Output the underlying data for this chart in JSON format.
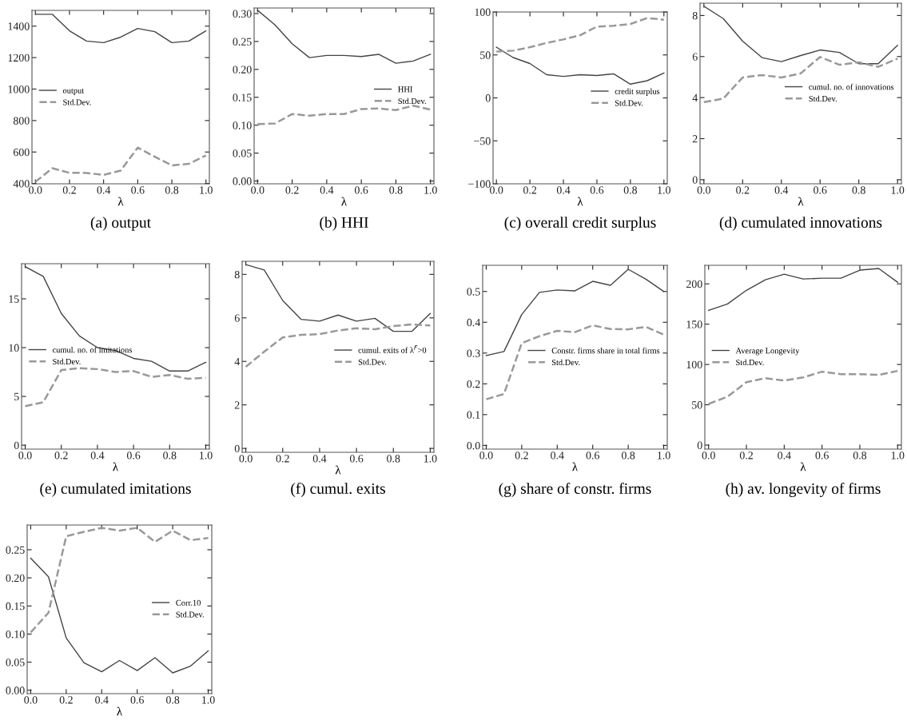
{
  "chart_data": [
    {
      "type": "line",
      "xlabel": "λ",
      "annotations": [
        "(a) output"
      ],
      "x": [
        0.0,
        0.1,
        0.2,
        0.3,
        0.4,
        0.5,
        0.6,
        0.7,
        0.8,
        0.9,
        1.0
      ],
      "xlim": [
        -0.02,
        1.02
      ],
      "xticks": [
        {
          "value": 0,
          "label": "0.0"
        },
        {
          "value": 0.2,
          "label": "0.2"
        },
        {
          "value": 0.4,
          "label": "0.4"
        },
        {
          "value": 0.6,
          "label": "0.6"
        },
        {
          "value": 0.8,
          "label": "0.8"
        },
        {
          "value": 1,
          "label": "1.0"
        }
      ],
      "ylim": [
        398,
        1500
      ],
      "yticks": [
        400,
        600,
        800,
        1000,
        1200,
        1400
      ],
      "legend": "center left",
      "series": [
        {
          "name": "output",
          "color": "#444444",
          "line_style": "solid",
          "values": [
            1475,
            1475,
            1370,
            1305,
            1295,
            1330,
            1385,
            1365,
            1295,
            1305,
            1370
          ]
        },
        {
          "name": "Std.Dev.",
          "color": "#999999",
          "line_style": "dashed",
          "values": [
            410,
            497,
            468,
            467,
            455,
            482,
            628,
            570,
            515,
            525,
            578
          ]
        }
      ]
    },
    {
      "type": "line",
      "xlabel": "λ",
      "annotations": [
        "(b) HHI"
      ],
      "x": [
        0.0,
        0.1,
        0.2,
        0.3,
        0.4,
        0.5,
        0.6,
        0.7,
        0.8,
        0.9,
        1.0
      ],
      "xlim": [
        -0.02,
        1.02
      ],
      "xticks": [
        {
          "value": 0,
          "label": "0.0"
        },
        {
          "value": 0.2,
          "label": "0.2"
        },
        {
          "value": 0.4,
          "label": "0.4"
        },
        {
          "value": 0.6,
          "label": "0.6"
        },
        {
          "value": 0.8,
          "label": "0.8"
        },
        {
          "value": 1,
          "label": "1.0"
        }
      ],
      "ylim": [
        -0.005,
        0.31
      ],
      "yticks": [
        {
          "value": 0,
          "label": "0.00"
        },
        {
          "value": 0.05,
          "label": "0.05"
        },
        {
          "value": 0.1,
          "label": "0.10"
        },
        {
          "value": 0.15,
          "label": "0.15"
        },
        {
          "value": 0.2,
          "label": "0.20"
        },
        {
          "value": 0.25,
          "label": "0.25"
        },
        {
          "value": 0.3,
          "label": "0.30"
        }
      ],
      "legend": "center right",
      "series": [
        {
          "name": "HHI",
          "color": "#444444",
          "line_style": "solid",
          "values": [
            0.306,
            0.28,
            0.246,
            0.221,
            0.225,
            0.225,
            0.223,
            0.227,
            0.211,
            0.215,
            0.227
          ]
        },
        {
          "name": "Std.Dev.",
          "color": "#999999",
          "line_style": "dashed",
          "values": [
            0.102,
            0.103,
            0.12,
            0.117,
            0.12,
            0.12,
            0.129,
            0.13,
            0.127,
            0.135,
            0.128
          ]
        }
      ]
    },
    {
      "type": "line",
      "xlabel": "λ",
      "annotations": [
        "(c) overall credit surplus"
      ],
      "x": [
        0.0,
        0.1,
        0.2,
        0.3,
        0.4,
        0.5,
        0.6,
        0.7,
        0.8,
        0.9,
        1.0
      ],
      "xlim": [
        -0.02,
        1.02
      ],
      "xticks": [
        {
          "value": 0,
          "label": "0.0"
        },
        {
          "value": 0.2,
          "label": "0.2"
        },
        {
          "value": 0.4,
          "label": "0.4"
        },
        {
          "value": 0.6,
          "label": "0.6"
        },
        {
          "value": 0.8,
          "label": "0.8"
        },
        {
          "value": 1,
          "label": "1.0"
        }
      ],
      "ylim": [
        -100,
        100
      ],
      "yticks": [
        {
          "value": -100,
          "label": "−100"
        },
        {
          "value": -50,
          "label": "−50"
        },
        0,
        50,
        100
      ],
      "legend": "center right",
      "series": [
        {
          "name": "credit surplus",
          "color": "#444444",
          "line_style": "solid",
          "values": [
            59,
            47,
            40,
            27,
            25,
            27,
            26,
            28,
            16,
            20,
            29
          ]
        },
        {
          "name": "Std.Dev.",
          "color": "#999999",
          "line_style": "dashed",
          "values": [
            54,
            55,
            59,
            64,
            68,
            73,
            83,
            84,
            86,
            93,
            91
          ]
        }
      ]
    },
    {
      "type": "line",
      "xlabel": "λ",
      "annotations": [
        "(d) cumulated innovations"
      ],
      "x": [
        0.0,
        0.1,
        0.2,
        0.3,
        0.4,
        0.5,
        0.6,
        0.7,
        0.8,
        0.9,
        1.0
      ],
      "xlim": [
        -0.02,
        1.02
      ],
      "xticks": [
        {
          "value": 0,
          "label": "0.0"
        },
        {
          "value": 0.2,
          "label": "0.2"
        },
        {
          "value": 0.4,
          "label": "0.4"
        },
        {
          "value": 0.6,
          "label": "0.6"
        },
        {
          "value": 0.8,
          "label": "0.8"
        },
        {
          "value": 1,
          "label": "1.0"
        }
      ],
      "ylim": [
        -0.2,
        8.6
      ],
      "yticks": [
        0,
        2,
        4,
        6,
        8
      ],
      "legend": "center right",
      "series": [
        {
          "name": "cumul. no. of innovations",
          "color": "#444444",
          "line_style": "solid",
          "values": [
            8.45,
            7.85,
            6.75,
            5.95,
            5.75,
            6.05,
            6.32,
            6.2,
            5.65,
            5.65,
            6.55
          ]
        },
        {
          "name": "Std.Dev.",
          "color": "#999999",
          "line_style": "dashed",
          "values": [
            3.78,
            3.95,
            4.98,
            5.1,
            4.98,
            5.18,
            5.98,
            5.6,
            5.72,
            5.5,
            5.9
          ]
        }
      ]
    },
    {
      "type": "line",
      "xlabel": "λ",
      "annotations": [
        "(e) cumulated imitations"
      ],
      "x": [
        0.0,
        0.1,
        0.2,
        0.3,
        0.4,
        0.5,
        0.6,
        0.7,
        0.8,
        0.9,
        1.0
      ],
      "xlim": [
        -0.02,
        1.02
      ],
      "xticks": [
        {
          "value": 0,
          "label": "0.0"
        },
        {
          "value": 0.2,
          "label": "0.2"
        },
        {
          "value": 0.4,
          "label": "0.4"
        },
        {
          "value": 0.6,
          "label": "0.6"
        },
        {
          "value": 0.8,
          "label": "0.8"
        },
        {
          "value": 1,
          "label": "1.0"
        }
      ],
      "ylim": [
        -0.4,
        18.6
      ],
      "yticks": [
        0,
        5,
        10,
        15
      ],
      "legend": "center left",
      "series": [
        {
          "name": "cumul. no. of imitations",
          "color": "#444444",
          "line_style": "solid",
          "values": [
            18.3,
            17.3,
            13.5,
            11.2,
            10.0,
            9.7,
            8.9,
            8.6,
            7.6,
            7.6,
            8.5
          ]
        },
        {
          "name": "Std.Dev.",
          "color": "#999999",
          "line_style": "dashed",
          "values": [
            4.0,
            4.4,
            7.7,
            7.9,
            7.8,
            7.5,
            7.6,
            7.0,
            7.2,
            6.8,
            6.9
          ]
        }
      ]
    },
    {
      "type": "line",
      "xlabel": "λ",
      "annotations": [
        "(f) cumul. exits"
      ],
      "x": [
        0.0,
        0.1,
        0.2,
        0.3,
        0.4,
        0.5,
        0.6,
        0.7,
        0.8,
        0.9,
        1.0
      ],
      "xlim": [
        -0.02,
        1.02
      ],
      "xticks": [
        {
          "value": 0,
          "label": "0.0"
        },
        {
          "value": 0.2,
          "label": "0.2"
        },
        {
          "value": 0.4,
          "label": "0.4"
        },
        {
          "value": 0.6,
          "label": "0.6"
        },
        {
          "value": 0.8,
          "label": "0.8"
        },
        {
          "value": 1,
          "label": "1.0"
        }
      ],
      "ylim": [
        -0.18,
        8.6
      ],
      "yticks": [
        0,
        2,
        4,
        6,
        8
      ],
      "legend": "center right",
      "series": [
        {
          "name": "cumul. exits of λ$^{F}$>0",
          "color": "#444444",
          "line_style": "solid",
          "values": [
            8.45,
            8.2,
            6.8,
            5.93,
            5.85,
            6.13,
            5.85,
            5.98,
            5.38,
            5.38,
            6.2
          ]
        },
        {
          "name": "Std.Dev.",
          "color": "#999999",
          "line_style": "dashed",
          "values": [
            3.75,
            4.45,
            5.1,
            5.22,
            5.25,
            5.42,
            5.52,
            5.48,
            5.62,
            5.7,
            5.65
          ]
        }
      ]
    },
    {
      "type": "line",
      "xlabel": "λ",
      "annotations": [
        "(g) share of constr. firms"
      ],
      "x": [
        0.0,
        0.1,
        0.2,
        0.3,
        0.4,
        0.5,
        0.6,
        0.7,
        0.8,
        0.9,
        1.0
      ],
      "xlim": [
        -0.02,
        1.02
      ],
      "xticks": [
        {
          "value": 0,
          "label": "0.0"
        },
        {
          "value": 0.2,
          "label": "0.2"
        },
        {
          "value": 0.4,
          "label": "0.4"
        },
        {
          "value": 0.6,
          "label": "0.6"
        },
        {
          "value": 0.8,
          "label": "0.8"
        },
        {
          "value": 1,
          "label": "1.0"
        }
      ],
      "ylim": [
        -0.012,
        0.585
      ],
      "yticks": [
        {
          "value": 0,
          "label": "0.0"
        },
        0.1,
        0.2,
        0.3,
        0.4,
        0.5
      ],
      "legend": "center right",
      "series": [
        {
          "name": "Constr. firms share in total firms",
          "color": "#444444",
          "line_style": "solid",
          "values": [
            0.292,
            0.305,
            0.425,
            0.497,
            0.505,
            0.502,
            0.533,
            0.52,
            0.572,
            0.54,
            0.5
          ]
        },
        {
          "name": "Std.Dev.",
          "color": "#999999",
          "line_style": "dashed",
          "values": [
            0.15,
            0.167,
            0.332,
            0.355,
            0.372,
            0.368,
            0.39,
            0.378,
            0.377,
            0.385,
            0.36
          ]
        }
      ]
    },
    {
      "type": "line",
      "xlabel": "λ",
      "annotations": [
        "(h) av. longevity of firms"
      ],
      "x": [
        0.0,
        0.1,
        0.2,
        0.3,
        0.4,
        0.5,
        0.6,
        0.7,
        0.8,
        0.9,
        1.0
      ],
      "xlim": [
        -0.02,
        1.02
      ],
      "xticks": [
        {
          "value": 0,
          "label": "0.0"
        },
        {
          "value": 0.2,
          "label": "0.2"
        },
        {
          "value": 0.4,
          "label": "0.4"
        },
        {
          "value": 0.6,
          "label": "0.6"
        },
        {
          "value": 0.8,
          "label": "0.8"
        },
        {
          "value": 1,
          "label": "1.0"
        }
      ],
      "ylim": [
        -5,
        223
      ],
      "yticks": [
        0,
        50,
        100,
        150,
        200
      ],
      "legend": "center left",
      "series": [
        {
          "name": "Average Longevity",
          "color": "#444444",
          "line_style": "solid",
          "values": [
            167,
            175,
            192,
            205,
            212,
            206,
            207,
            207,
            217,
            219,
            202
          ]
        },
        {
          "name": "Std.Dev.",
          "color": "#999999",
          "line_style": "dashed",
          "values": [
            51,
            60,
            78,
            83,
            80,
            84,
            91,
            88,
            88,
            87,
            92
          ]
        }
      ]
    },
    {
      "type": "line",
      "xlabel": "λ",
      "x": [
        0.0,
        0.1,
        0.2,
        0.3,
        0.4,
        0.5,
        0.6,
        0.7,
        0.8,
        0.9,
        1.0
      ],
      "xlim": [
        -0.02,
        1.02
      ],
      "xticks": [
        {
          "value": 0,
          "label": "0.0"
        },
        {
          "value": 0.2,
          "label": "0.2"
        },
        {
          "value": 0.4,
          "label": "0.4"
        },
        {
          "value": 0.6,
          "label": "0.6"
        },
        {
          "value": 0.8,
          "label": "0.8"
        },
        {
          "value": 1,
          "label": "1.0"
        }
      ],
      "ylim": [
        -0.006,
        0.294
      ],
      "yticks": [
        {
          "value": 0,
          "label": "0.00"
        },
        {
          "value": 0.05,
          "label": "0.05"
        },
        {
          "value": 0.1,
          "label": "0.10"
        },
        {
          "value": 0.15,
          "label": "0.15"
        },
        {
          "value": 0.2,
          "label": "0.20"
        },
        {
          "value": 0.25,
          "label": "0.25"
        }
      ],
      "legend": "center right",
      "series": [
        {
          "name": "Corr.10",
          "color": "#444444",
          "line_style": "solid",
          "values": [
            0.235,
            0.202,
            0.093,
            0.049,
            0.033,
            0.053,
            0.035,
            0.058,
            0.031,
            0.043,
            0.07
          ]
        },
        {
          "name": "Std.Dev.",
          "color": "#999999",
          "line_style": "dashed",
          "values": [
            0.103,
            0.138,
            0.274,
            0.282,
            0.289,
            0.284,
            0.289,
            0.264,
            0.284,
            0.267,
            0.271
          ]
        }
      ]
    }
  ]
}
